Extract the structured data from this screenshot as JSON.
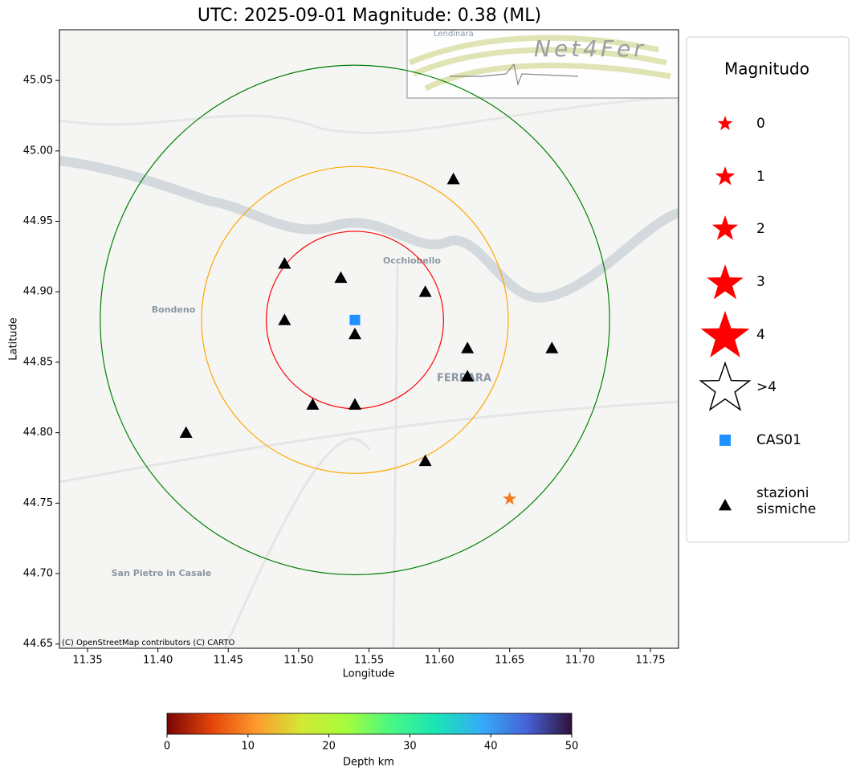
{
  "chart_data": {
    "type": "scatter",
    "title": "UTC: 2025-09-01 Magnitude: 0.38 (ML)",
    "xlabel": "Longitude",
    "ylabel": "Latitude",
    "xlim": [
      11.33,
      11.77
    ],
    "ylim": [
      44.647,
      45.086
    ],
    "xticks": [
      11.35,
      {
        "value": 11.4,
        "label": "11.40"
      },
      11.45,
      {
        "value": 11.5,
        "label": "11.50"
      },
      11.55,
      {
        "value": 11.6,
        "label": "11.60"
      },
      11.65,
      {
        "value": 11.7,
        "label": "11.70"
      },
      11.75
    ],
    "yticks": [
      44.65,
      {
        "value": 44.7,
        "label": "44.70"
      },
      44.75,
      {
        "value": 44.8,
        "label": "44.80"
      },
      44.85,
      {
        "value": 44.9,
        "label": "44.90"
      },
      44.95,
      {
        "value": 45.0,
        "label": "45.00"
      },
      45.05
    ],
    "stations": {
      "name": "stazioni sismiche",
      "color": "#000000",
      "x": [
        11.61,
        11.49,
        11.53,
        11.59,
        11.49,
        11.54,
        11.62,
        11.68,
        11.62,
        11.51,
        11.54,
        11.42,
        11.59
      ],
      "y": [
        44.98,
        44.92,
        44.91,
        44.9,
        44.88,
        44.87,
        44.86,
        44.86,
        44.84,
        44.82,
        44.82,
        44.8,
        44.78
      ]
    },
    "reference": {
      "name": "CAS01",
      "color": "#1e90ff",
      "x": 11.54,
      "y": 44.88
    },
    "rings": [
      {
        "radius": 0.063,
        "color": "#ff0000"
      },
      {
        "radius": 0.109,
        "color": "#ffa500"
      },
      {
        "radius": 0.181,
        "color": "#008000"
      }
    ],
    "event": {
      "x": 11.65,
      "y": 44.753,
      "depth": 9
    },
    "legend": {
      "title": "Magnitudo",
      "labels": [
        "0",
        "1",
        "2",
        "3",
        "4",
        ">4"
      ],
      "color": "#ff0000"
    },
    "colorbar": {
      "label": "Depth km",
      "lim": [
        0,
        50
      ],
      "ticks": [
        0,
        10,
        20,
        30,
        40,
        50
      ],
      "colors": [
        "#7a0403",
        "#e4460a",
        "#fe9b2d",
        "#d2e935",
        "#a4fc3c",
        "#46f884",
        "#1ae4b6",
        "#35abf8",
        "#4662d7",
        "#30123b"
      ]
    },
    "map_labels": [
      "Bondeno",
      "Occhiobello",
      "FERRARA",
      "San Pietro in Casale",
      "Lendinara"
    ],
    "attribution": "(C) OpenStreetMap contributors (C) CARTO",
    "logo": "Net4Fer"
  }
}
